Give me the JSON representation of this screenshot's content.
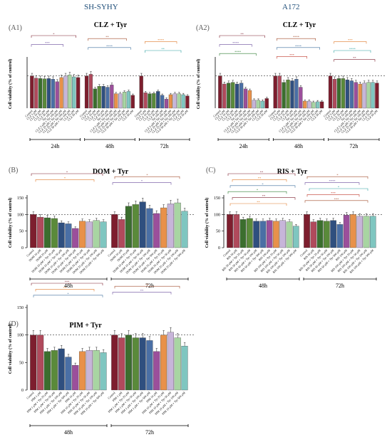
{
  "header": {
    "left": "SH-SYHY",
    "right": "A172"
  },
  "colors": {
    "palette": [
      "#7d1e2e",
      "#b04a5c",
      "#3b6e2e",
      "#5a8a3a",
      "#2f4f7f",
      "#4a6fa5",
      "#9b4f9b",
      "#e8914a",
      "#c7b5d9",
      "#a8d5a2",
      "#7fc6c0",
      "#7d1e2e",
      "#ffffff"
    ],
    "brackets": [
      "#7d1e2e",
      "#a04a2a",
      "#e07a2a",
      "#6a4c9c",
      "#3c6e9c",
      "#2aa0a0",
      "#2e7d32",
      "#c0392b"
    ]
  },
  "chart_data": [
    {
      "id": "A1",
      "panel_label": "(A1)",
      "title": "CLZ + Tyr",
      "type": "bar",
      "ylabel": "Cell viability (% of control)",
      "yticks": [],
      "ylim": [
        0,
        150
      ],
      "reference_line": 100,
      "groups": [
        {
          "label": "24h",
          "values": [
            100,
            93,
            92,
            91,
            92,
            90,
            82,
            95,
            100,
            103,
            97,
            95
          ]
        },
        {
          "label": "48h",
          "values": [
            100,
            105,
            60,
            68,
            68,
            65,
            72,
            45,
            45,
            50,
            52,
            40
          ]
        },
        {
          "label": "72h",
          "values": [
            100,
            48,
            45,
            46,
            52,
            40,
            28,
            42,
            45,
            45,
            42,
            38
          ]
        }
      ],
      "categories": [
        "Control",
        "CLZ 5 μM",
        "CLZ 10 μM",
        "CLZ 25 μM",
        "CLZ 50 μM",
        "Tyr 100 μM",
        "CLZ 5 μM + Tyr 100 μM",
        "CLZ 10 μM + Tyr 100 μM",
        "CLZ 25 μM + Tyr 100 μM",
        "CLZ 50 μM + Tyr 100 μM",
        "CLZ 25 μM",
        "CLZ 50 μM"
      ],
      "significance": [
        "*",
        "**",
        "****",
        "***",
        "****",
        "**"
      ]
    },
    {
      "id": "A2",
      "panel_label": "(A2)",
      "title": "CLZ + Tyr",
      "type": "bar",
      "ylabel": "Cell viability (% of control)",
      "yticks": [],
      "ylim": [
        0,
        150
      ],
      "reference_line": 100,
      "groups": [
        {
          "label": "24h",
          "values": [
            100,
            75,
            78,
            80,
            75,
            78,
            60,
            55,
            25,
            25,
            22,
            30
          ]
        },
        {
          "label": "48h",
          "values": [
            100,
            100,
            80,
            88,
            85,
            90,
            65,
            22,
            22,
            18,
            20,
            20
          ]
        },
        {
          "label": "72h",
          "values": [
            100,
            90,
            92,
            92,
            88,
            85,
            80,
            75,
            78,
            80,
            80,
            78
          ]
        }
      ],
      "categories": [
        "Control",
        "CLZ 5 μM",
        "CLZ 10 μM",
        "CLZ 25 μM",
        "CLZ 50 μM",
        "Tyr 100 μM",
        "CLZ 5 μM + Tyr 100 μM",
        "CLZ 10 μM + Tyr 100 μM",
        "CLZ 25 μM + Tyr 100 μM",
        "CLZ 50 μM + Tyr 100 μM",
        "CLZ 25 μM",
        "CLZ 50 μM"
      ],
      "significance": [
        "**",
        "****",
        "***",
        "****",
        "****",
        "****",
        "****",
        "***",
        "**"
      ]
    },
    {
      "id": "B",
      "panel_label": "(B)",
      "title": "DOM + Tyr",
      "type": "bar",
      "ylabel": "Cell viability (% of control)",
      "yticks": [
        "0",
        "50",
        "100",
        "150"
      ],
      "ylim": [
        0,
        150
      ],
      "reference_line": 100,
      "groups": [
        {
          "label": "48h",
          "values": [
            100,
            92,
            90,
            88,
            75,
            72,
            58,
            80,
            78,
            82,
            78
          ]
        },
        {
          "label": "72h",
          "values": [
            100,
            85,
            125,
            130,
            138,
            118,
            103,
            120,
            132,
            135,
            110
          ]
        }
      ],
      "categories": [
        "Control",
        "DOM 10 μM",
        "DOM 25 μM",
        "DOM 10 μM + Tyr 25 μM",
        "DOM 10 μM + Tyr 50 μM",
        "DOM 10 μM + Tyr 100 μM",
        "DOM 10 μM + Tyr 500 μM",
        "DOM 25 μM + Tyr 25 μM",
        "DOM 25 μM + Tyr 50 μM",
        "DOM 25 μM + Tyr 100 μM",
        "DOM 25 μM + Tyr 500 μM"
      ],
      "significance": [
        "*",
        "*",
        "*",
        "*"
      ]
    },
    {
      "id": "C",
      "panel_label": "(C)",
      "title": "RIS + Tyr",
      "type": "bar",
      "ylabel": "Cell viability (% of control)",
      "yticks": [
        "0",
        "50",
        "100",
        "150"
      ],
      "ylim": [
        0,
        150
      ],
      "reference_line": 100,
      "groups": [
        {
          "label": "48h",
          "values": [
            100,
            100,
            85,
            88,
            80,
            80,
            82,
            80,
            82,
            78,
            65
          ]
        },
        {
          "label": "72h",
          "values": [
            100,
            78,
            82,
            80,
            82,
            70,
            98,
            100,
            95,
            95,
            95
          ]
        }
      ],
      "categories": [
        "Control",
        "RIS 50 μM",
        "RIS 50 μM + Tyr 25 μM",
        "RIS 50 μM + Tyr 50 μM",
        "RIS 50 μM + Tyr 100 μM",
        "RIS 50 μM + Tyr 500 μM",
        "RIS 100 μM",
        "RIS 100 μM + Tyr 25 μM",
        "RIS 100 μM + Tyr 50 μM",
        "RIS 100 μM + Tyr 100 μM",
        "RIS 100 μM + Tyr 500 μM"
      ],
      "significance": [
        "**",
        "*",
        "**",
        "****",
        "*",
        "*",
        "*",
        "***",
        "**",
        "***",
        "**"
      ]
    },
    {
      "id": "D",
      "panel_label": "(D)",
      "title": "PIM + Tyr",
      "type": "bar",
      "ylabel": "Cell viability (% of control)",
      "yticks": [
        "0",
        "50",
        "100",
        "150"
      ],
      "ylim": [
        0,
        150
      ],
      "reference_line": 100,
      "groups": [
        {
          "label": "48h",
          "values": [
            100,
            100,
            70,
            72,
            75,
            60,
            45,
            70,
            72,
            72,
            68
          ]
        },
        {
          "label": "72h",
          "values": [
            100,
            95,
            100,
            95,
            95,
            90,
            70,
            100,
            105,
            95,
            80
          ]
        }
      ],
      "categories": [
        "Control",
        "PIM 1 μM",
        "PIM 1 μM + Tyr 25 μM",
        "PIM 1 μM + Tyr 50 μM",
        "PIM 1 μM + Tyr 100 μM",
        "PIM 1 μM + Tyr 500 μM",
        "PIM 10 μM",
        "PIM 10 μM + Tyr 25 μM",
        "PIM 10 μM + Tyr 50 μM",
        "PIM 10 μM + Tyr 100 μM",
        "PIM 10 μM + Tyr 500 μM"
      ],
      "significance": [
        "***",
        "**",
        "**",
        "**",
        "*"
      ]
    }
  ]
}
